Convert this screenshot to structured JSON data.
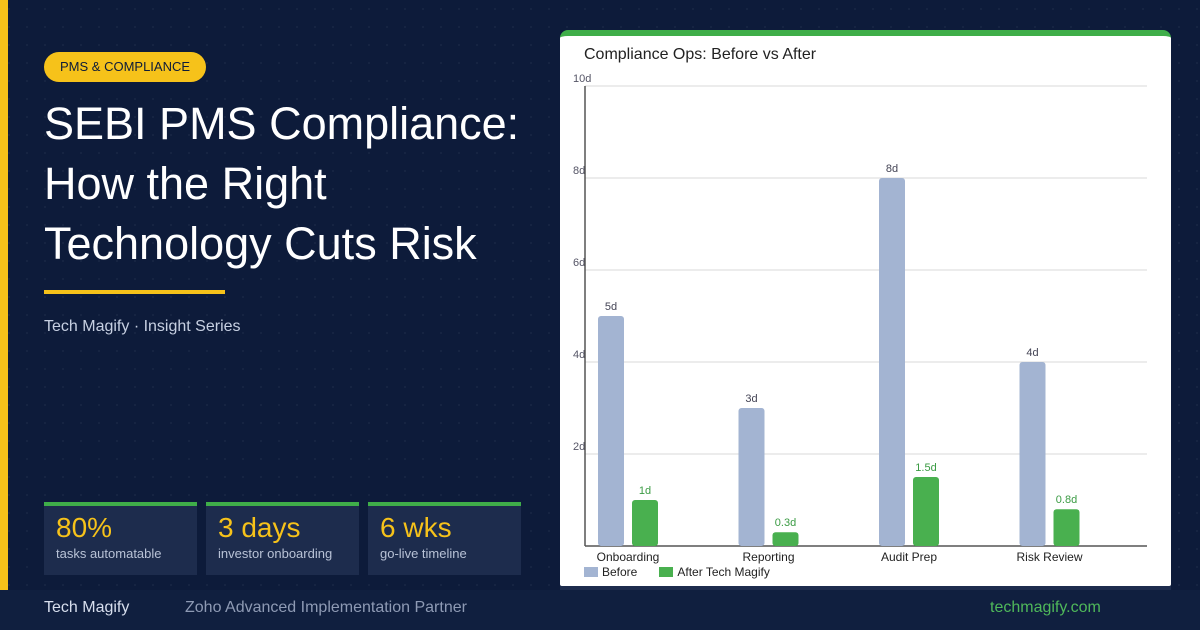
{
  "badge": "PMS & COMPLIANCE",
  "title_lines": [
    "SEBI PMS Compliance:",
    "How the Right",
    "Technology Cuts Risk"
  ],
  "series_text": "Tech Magify · Insight Series",
  "stats": [
    {
      "value": "80%",
      "label": "tasks automatable"
    },
    {
      "value": "3 days",
      "label": "investor onboarding"
    },
    {
      "value": "6 wks",
      "label": "go-live timeline"
    }
  ],
  "footer": {
    "brand": "Tech Magify",
    "partner": "Zoho Advanced Implementation Partner",
    "site": "techmagify.com"
  },
  "colors": {
    "accent": "#f6c21a",
    "green": "#3fae49",
    "before": "#a3b4d2",
    "after": "#49b04f",
    "background": "#0d1b3a"
  },
  "chart_data": {
    "type": "bar",
    "title": "Compliance Ops: Before vs After",
    "categories": [
      "Onboarding",
      "Reporting",
      "Audit Prep",
      "Risk Review"
    ],
    "series": [
      {
        "name": "Before",
        "values": [
          5,
          3,
          8,
          4
        ],
        "labels": [
          "5d",
          "3d",
          "8d",
          "4d"
        ]
      },
      {
        "name": "After Tech Magify",
        "values": [
          1,
          0.3,
          1.5,
          0.8
        ],
        "labels": [
          "1d",
          "0.3d",
          "1.5d",
          "0.8d"
        ]
      }
    ],
    "ylim": [
      0,
      10
    ],
    "yticks": [
      2,
      4,
      6,
      8,
      10
    ],
    "ytick_labels": [
      "2d",
      "4d",
      "6d",
      "8d",
      "10d"
    ],
    "grid": true,
    "legend_position": "bottom-left"
  }
}
